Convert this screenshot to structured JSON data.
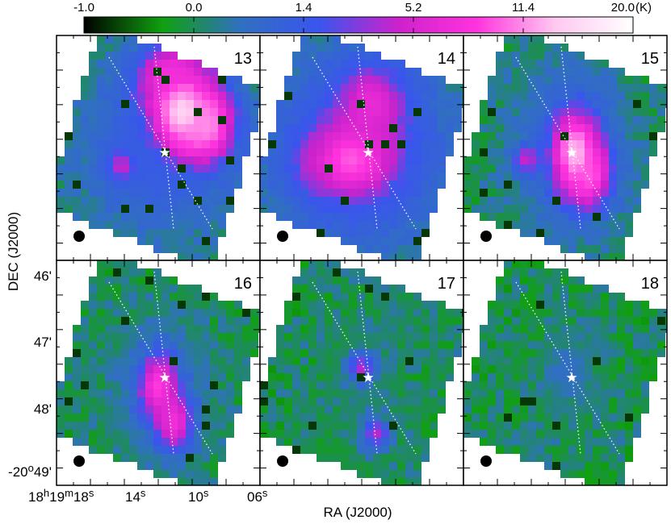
{
  "chart_data": {
    "type": "heatmap",
    "colorbar": {
      "ticks": [
        "-1.0",
        "0.0",
        "1.4",
        "5.2",
        "11.4",
        "20.0"
      ],
      "unit": "(K)",
      "colors": [
        "#000000",
        "#10a010",
        "#3070c0",
        "#3a55ee",
        "#cc22cc",
        "#ff33dd",
        "#ffc8f0",
        "#ffffff"
      ]
    },
    "xlabel": "RA (J2000)",
    "ylabel": "DEC (J2000)",
    "x_ticks": [
      {
        "h": "18",
        "hu": "h",
        "m": "19",
        "mu": "m",
        "s": "18",
        "su": "s"
      },
      {
        "h": "",
        "hu": "",
        "m": "",
        "mu": "",
        "s": "14",
        "su": "s"
      },
      {
        "h": "",
        "hu": "",
        "m": "",
        "mu": "",
        "s": "10",
        "su": "s"
      },
      {
        "h": "",
        "hu": "",
        "m": "",
        "mu": "",
        "s": "06",
        "su": "s"
      }
    ],
    "y_ticks": [
      {
        "label": "46'"
      },
      {
        "label": "47'"
      },
      {
        "label": "48'"
      },
      {
        "label": "-20",
        "sup": "o",
        "rest": "49'"
      }
    ],
    "panels": [
      {
        "label": "13",
        "star": "★",
        "blobs": [
          {
            "cx": 0.62,
            "cy": 0.34,
            "rx": 0.14,
            "ry": 0.16,
            "v": 0.88
          },
          {
            "cx": 0.74,
            "cy": 0.4,
            "rx": 0.1,
            "ry": 0.12,
            "v": 0.8
          },
          {
            "cx": 0.55,
            "cy": 0.18,
            "rx": 0.12,
            "ry": 0.1,
            "v": 0.68
          },
          {
            "cx": 0.32,
            "cy": 0.58,
            "rx": 0.06,
            "ry": 0.06,
            "v": 0.58
          },
          {
            "cx": 0.5,
            "cy": 0.5,
            "rx": 0.3,
            "ry": 0.3,
            "v": 0.4
          }
        ]
      },
      {
        "label": "14",
        "star": "★",
        "blobs": [
          {
            "cx": 0.45,
            "cy": 0.55,
            "rx": 0.2,
            "ry": 0.16,
            "v": 0.75
          },
          {
            "cx": 0.55,
            "cy": 0.3,
            "rx": 0.14,
            "ry": 0.14,
            "v": 0.65
          },
          {
            "cx": 0.3,
            "cy": 0.55,
            "rx": 0.08,
            "ry": 0.08,
            "v": 0.58
          },
          {
            "cx": 0.5,
            "cy": 0.5,
            "rx": 0.34,
            "ry": 0.36,
            "v": 0.42
          }
        ]
      },
      {
        "label": "15",
        "star": "★",
        "blobs": [
          {
            "cx": 0.55,
            "cy": 0.52,
            "rx": 0.1,
            "ry": 0.16,
            "v": 0.85
          },
          {
            "cx": 0.62,
            "cy": 0.62,
            "rx": 0.08,
            "ry": 0.1,
            "v": 0.75
          },
          {
            "cx": 0.31,
            "cy": 0.55,
            "rx": 0.05,
            "ry": 0.05,
            "v": 0.58
          },
          {
            "cx": 0.52,
            "cy": 0.5,
            "rx": 0.22,
            "ry": 0.28,
            "v": 0.35
          }
        ]
      },
      {
        "label": "16",
        "star": "★",
        "blobs": [
          {
            "cx": 0.5,
            "cy": 0.56,
            "rx": 0.08,
            "ry": 0.12,
            "v": 0.72
          },
          {
            "cx": 0.58,
            "cy": 0.72,
            "rx": 0.07,
            "ry": 0.1,
            "v": 0.68
          },
          {
            "cx": 0.52,
            "cy": 0.58,
            "rx": 0.18,
            "ry": 0.24,
            "v": 0.3
          }
        ]
      },
      {
        "label": "17",
        "star": "★",
        "blobs": [
          {
            "cx": 0.5,
            "cy": 0.48,
            "rx": 0.05,
            "ry": 0.05,
            "v": 0.55
          },
          {
            "cx": 0.57,
            "cy": 0.77,
            "rx": 0.05,
            "ry": 0.05,
            "v": 0.55
          },
          {
            "cx": 0.52,
            "cy": 0.58,
            "rx": 0.14,
            "ry": 0.26,
            "v": 0.22
          }
        ]
      },
      {
        "label": "18",
        "star": "★",
        "blobs": [
          {
            "cx": 0.52,
            "cy": 0.5,
            "rx": 0.08,
            "ry": 0.1,
            "v": 0.3
          },
          {
            "cx": 0.52,
            "cy": 0.55,
            "rx": 0.16,
            "ry": 0.26,
            "v": 0.18
          }
        ]
      }
    ]
  }
}
